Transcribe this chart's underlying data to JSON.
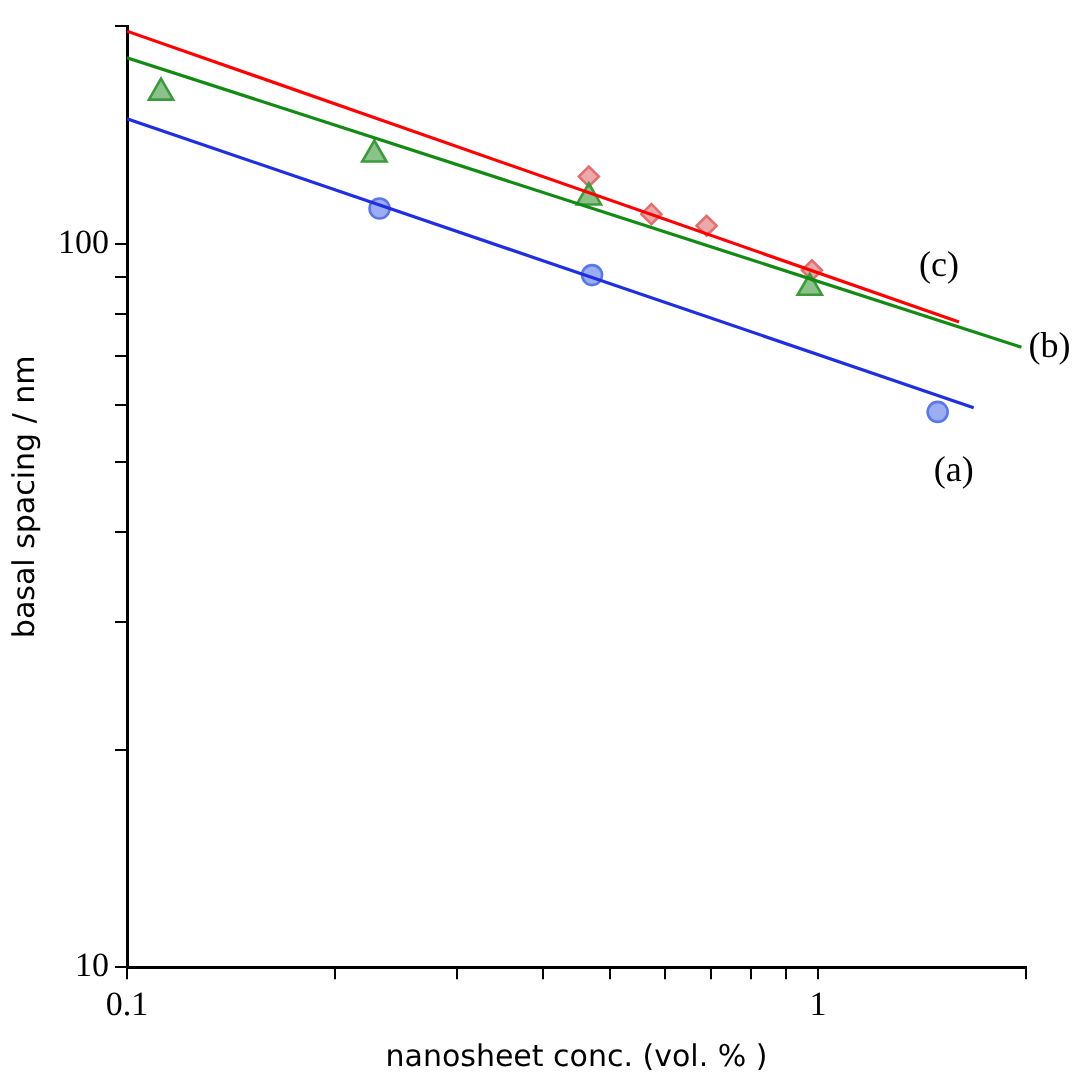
{
  "chart_data": {
    "type": "scatter",
    "xlabel": "nanosheet conc. (vol. % )",
    "ylabel": "basal spacing / nm",
    "log": "xy",
    "xlim": [
      0.1,
      2
    ],
    "ylim": [
      10,
      200
    ],
    "xticks": [
      0.1,
      {
        "value": 0.2,
        "label": null
      },
      {
        "value": 0.3,
        "label": null
      },
      {
        "value": 0.4,
        "label": null
      },
      {
        "value": 0.5,
        "label": null
      },
      {
        "value": 0.6,
        "label": null
      },
      {
        "value": 0.7,
        "label": null
      },
      {
        "value": 0.8,
        "label": null
      },
      {
        "value": 0.9,
        "label": null
      },
      1,
      {
        "value": 2,
        "label": null
      }
    ],
    "yticks": [
      10,
      {
        "value": 20,
        "label": null
      },
      {
        "value": 30,
        "label": null
      },
      {
        "value": 40,
        "label": null
      },
      {
        "value": 50,
        "label": null
      },
      {
        "value": 60,
        "label": null
      },
      {
        "value": 70,
        "label": null
      },
      {
        "value": 80,
        "label": null
      },
      {
        "value": 90,
        "label": null
      },
      100,
      {
        "value": 200,
        "label": null
      }
    ],
    "grid": false,
    "legend": false,
    "series": [
      {
        "type": "line",
        "name": "(a)",
        "color": "#1f2fe0",
        "x": [
          0.1,
          1.68
        ],
        "values": [
          149,
          59.4
        ],
        "marker": "none"
      },
      {
        "type": "line",
        "name": "(b)",
        "color": "#138a13",
        "x": [
          0.1,
          1.97
        ],
        "values": [
          181,
          72
        ],
        "marker": "none"
      },
      {
        "type": "line",
        "name": "(c)",
        "color": "#ff0000",
        "x": [
          0.1,
          1.6
        ],
        "values": [
          197,
          78
        ],
        "marker": "none"
      },
      {
        "color": "#5a78e8",
        "x": [
          0.232,
          0.471,
          1.49
        ],
        "values": [
          112,
          90.6,
          58.6
        ],
        "marker": "circle"
      },
      {
        "color": "#3c9a3c",
        "x": [
          0.112,
          0.228,
          0.466,
          0.973
        ],
        "values": [
          162,
          133,
          116,
          87
        ],
        "marker": "triangle"
      },
      {
        "color": "#e07070",
        "x": [
          0.466,
          0.574,
          0.69,
          0.98
        ],
        "values": [
          124,
          110,
          106,
          92
        ],
        "marker": "diamond"
      }
    ]
  }
}
